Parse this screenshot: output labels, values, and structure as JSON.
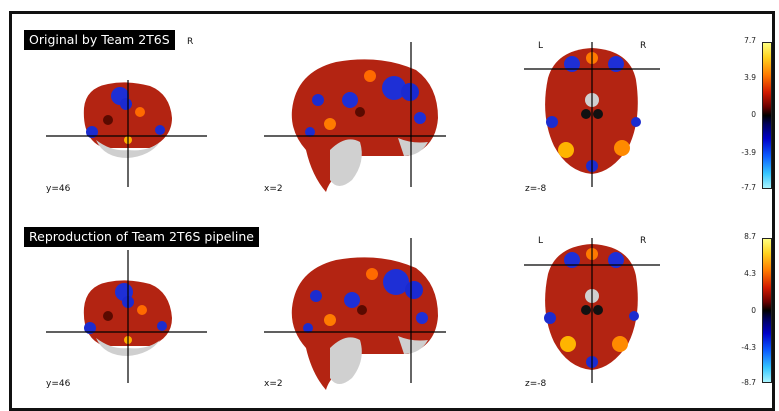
{
  "panels": [
    {
      "title": "Original by Team 2T6S",
      "title_tail": "R",
      "coords": {
        "coronal": "y=46",
        "sagittal": "x=2",
        "axial": "z=-8"
      },
      "orientation": {
        "left": "L",
        "right": "R"
      },
      "colorbar": {
        "ticks": [
          "7.7",
          "3.9",
          "0",
          "-3.9",
          "-7.7"
        ]
      }
    },
    {
      "title": "Reproduction of Team 2T6S pipeline",
      "coords": {
        "coronal": "y=46",
        "sagittal": "x=2",
        "axial": "z=-8"
      },
      "orientation": {
        "left": "L",
        "right": "R"
      },
      "colorbar": {
        "ticks": [
          "8.7",
          "4.3",
          "0",
          "-4.3",
          "-8.7"
        ]
      }
    }
  ],
  "colors": {
    "positive_peak": "#ffff80",
    "positive": "#d21a00",
    "negative": "#0000c8",
    "negative_peak": "#a9f5ff",
    "background": "#ffffff"
  }
}
